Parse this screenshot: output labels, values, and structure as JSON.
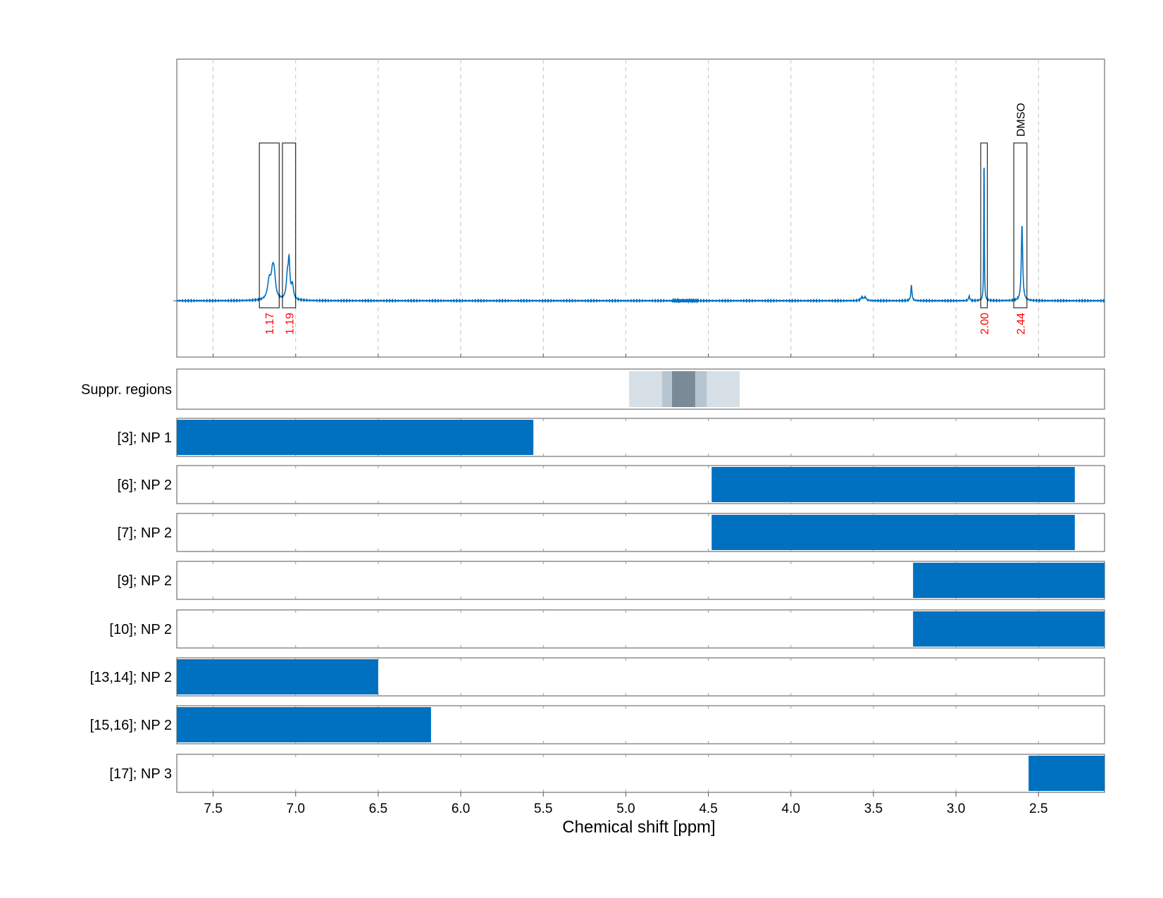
{
  "chart_data": {
    "type": "line",
    "xlabel": "Chemical shift [ppm]",
    "xlim": [
      7.72,
      2.1
    ],
    "x_reversed": true,
    "xticks": [
      "7.5",
      "7.0",
      "6.5",
      "6.0",
      "5.5",
      "5.0",
      "4.5",
      "4.0",
      "3.5",
      "3.0",
      "2.5"
    ],
    "grid": "vertical dashed",
    "colors": {
      "spectrum": "#0070c0",
      "bar": "#0070c0",
      "integral_text": "#ff0000",
      "suppression_light": "#d6dfe6",
      "suppression_mid": "#b6c5cf",
      "suppression_dark": "#7a8b97"
    },
    "spectrum": {
      "peaks": [
        {
          "ppm": 7.16,
          "height": 0.12,
          "width": 0.012
        },
        {
          "ppm": 7.14,
          "height": 0.14,
          "width": 0.01
        },
        {
          "ppm": 7.13,
          "height": 0.13,
          "width": 0.01
        },
        {
          "ppm": 7.05,
          "height": 0.14,
          "width": 0.008
        },
        {
          "ppm": 7.04,
          "height": 0.22,
          "width": 0.006
        },
        {
          "ppm": 7.02,
          "height": 0.09,
          "width": 0.008
        },
        {
          "ppm": 3.57,
          "height": 0.02,
          "width": 0.008
        },
        {
          "ppm": 3.55,
          "height": 0.02,
          "width": 0.008
        },
        {
          "ppm": 3.27,
          "height": 0.1,
          "width": 0.004
        },
        {
          "ppm": 2.92,
          "height": 0.03,
          "width": 0.004
        },
        {
          "ppm": 2.83,
          "height": 0.9,
          "width": 0.002
        },
        {
          "ppm": 2.6,
          "height": 0.48,
          "width": 0.005
        }
      ],
      "integrals": [
        {
          "from": 7.22,
          "to": 7.1,
          "value": "1.17"
        },
        {
          "from": 7.08,
          "to": 7.0,
          "value": "1.19"
        },
        {
          "from": 2.85,
          "to": 2.81,
          "value": "2.00"
        },
        {
          "from": 2.65,
          "to": 2.57,
          "value": "2.44"
        }
      ],
      "peak_labels": [
        {
          "ppm": 2.61,
          "text": "DMSO"
        }
      ]
    },
    "suppression": {
      "label": "Suppr. regions",
      "regions": [
        {
          "from": 4.98,
          "to": 4.31,
          "level": "light"
        },
        {
          "from": 4.78,
          "to": 4.51,
          "level": "mid"
        },
        {
          "from": 4.72,
          "to": 4.58,
          "level": "dark"
        }
      ]
    },
    "rows": [
      {
        "label": "[3]; NP 1",
        "from": 7.72,
        "to": 5.56
      },
      {
        "label": "[6]; NP 2",
        "from": 4.48,
        "to": 2.28
      },
      {
        "label": "[7]; NP 2",
        "from": 4.48,
        "to": 2.28
      },
      {
        "label": "[9]; NP 2",
        "from": 3.26,
        "to": 2.1
      },
      {
        "label": "[10]; NP 2",
        "from": 3.26,
        "to": 2.1
      },
      {
        "label": "[13,14]; NP 2",
        "from": 7.72,
        "to": 6.5
      },
      {
        "label": "[15,16]; NP 2",
        "from": 7.72,
        "to": 6.18
      },
      {
        "label": "[17]; NP 3",
        "from": 2.56,
        "to": 2.1
      }
    ]
  }
}
